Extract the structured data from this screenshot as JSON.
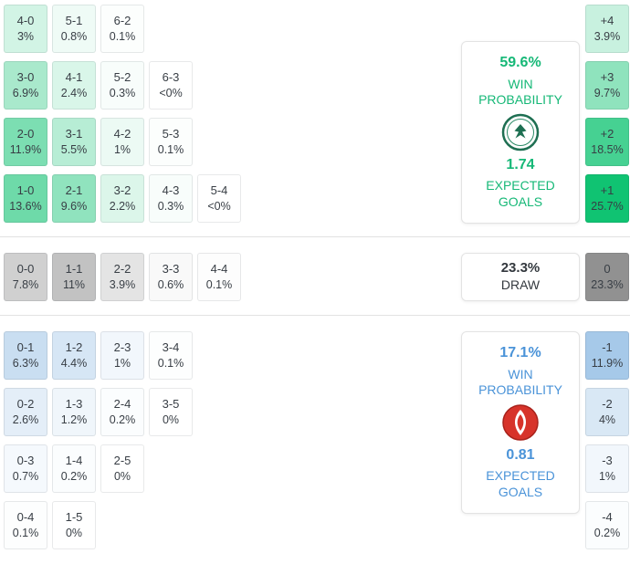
{
  "colors": {
    "home_accent": "#10c372",
    "draw_accent": "#919191",
    "away_accent": "#5c9cd6",
    "home_text": "#16b877",
    "away_text": "#4a93d8",
    "dark_text": "#33383e",
    "cell_text": "#383e45"
  },
  "summary_cards": {
    "home": {
      "win_probability": "59.6%",
      "win_probability_label": "WIN PROBABILITY",
      "expected_goals": "1.74",
      "expected_goals_label": "EXPECTED GOALS",
      "crest_icon": "konyaspor-crest-icon"
    },
    "draw": {
      "probability": "23.3%",
      "label": "DRAW"
    },
    "away": {
      "win_probability": "17.1%",
      "win_probability_label": "WIN PROBABILITY",
      "expected_goals": "0.81",
      "expected_goals_label": "EXPECTED GOALS",
      "crest_icon": "antalyaspor-crest-icon"
    }
  },
  "chart_data": {
    "type": "heatmap",
    "max_value_for_shading": 25.7,
    "draw_max_for_shading": 23.3,
    "sections": {
      "home_win": {
        "rows": [
          [
            {
              "score": "4-0",
              "probability": "3%",
              "value": 3.0
            },
            {
              "score": "5-1",
              "probability": "0.8%",
              "value": 0.8
            },
            {
              "score": "6-2",
              "probability": "0.1%",
              "value": 0.1
            }
          ],
          [
            {
              "score": "3-0",
              "probability": "6.9%",
              "value": 6.9
            },
            {
              "score": "4-1",
              "probability": "2.4%",
              "value": 2.4
            },
            {
              "score": "5-2",
              "probability": "0.3%",
              "value": 0.3
            },
            {
              "score": "6-3",
              "probability": "<0%",
              "value": 0
            }
          ],
          [
            {
              "score": "2-0",
              "probability": "11.9%",
              "value": 11.9
            },
            {
              "score": "3-1",
              "probability": "5.5%",
              "value": 5.5
            },
            {
              "score": "4-2",
              "probability": "1%",
              "value": 1.0
            },
            {
              "score": "5-3",
              "probability": "0.1%",
              "value": 0.1
            }
          ],
          [
            {
              "score": "1-0",
              "probability": "13.6%",
              "value": 13.6
            },
            {
              "score": "2-1",
              "probability": "9.6%",
              "value": 9.6
            },
            {
              "score": "3-2",
              "probability": "2.2%",
              "value": 2.2
            },
            {
              "score": "4-3",
              "probability": "0.3%",
              "value": 0.3
            },
            {
              "score": "5-4",
              "probability": "<0%",
              "value": 0
            }
          ]
        ]
      },
      "draw": {
        "rows": [
          [
            {
              "score": "0-0",
              "probability": "7.8%",
              "value": 7.8
            },
            {
              "score": "1-1",
              "probability": "11%",
              "value": 11.0
            },
            {
              "score": "2-2",
              "probability": "3.9%",
              "value": 3.9
            },
            {
              "score": "3-3",
              "probability": "0.6%",
              "value": 0.6
            },
            {
              "score": "4-4",
              "probability": "0.1%",
              "value": 0.1
            }
          ]
        ]
      },
      "away_win": {
        "rows": [
          [
            {
              "score": "0-1",
              "probability": "6.3%",
              "value": 6.3
            },
            {
              "score": "1-2",
              "probability": "4.4%",
              "value": 4.4
            },
            {
              "score": "2-3",
              "probability": "1%",
              "value": 1.0
            },
            {
              "score": "3-4",
              "probability": "0.1%",
              "value": 0.1
            }
          ],
          [
            {
              "score": "0-2",
              "probability": "2.6%",
              "value": 2.6
            },
            {
              "score": "1-3",
              "probability": "1.2%",
              "value": 1.2
            },
            {
              "score": "2-4",
              "probability": "0.2%",
              "value": 0.2
            },
            {
              "score": "3-5",
              "probability": "0%",
              "value": 0
            }
          ],
          [
            {
              "score": "0-3",
              "probability": "0.7%",
              "value": 0.7
            },
            {
              "score": "1-4",
              "probability": "0.2%",
              "value": 0.2
            },
            {
              "score": "2-5",
              "probability": "0%",
              "value": 0
            }
          ],
          [
            {
              "score": "0-4",
              "probability": "0.1%",
              "value": 0.1
            },
            {
              "score": "1-5",
              "probability": "0%",
              "value": 0
            }
          ]
        ]
      }
    },
    "goal_difference": [
      {
        "diff": "+4",
        "probability": "3.9%",
        "value": 3.9,
        "section": "home"
      },
      {
        "diff": "+3",
        "probability": "9.7%",
        "value": 9.7,
        "section": "home"
      },
      {
        "diff": "+2",
        "probability": "18.5%",
        "value": 18.5,
        "section": "home"
      },
      {
        "diff": "+1",
        "probability": "25.7%",
        "value": 25.7,
        "section": "home"
      },
      {
        "diff": "0",
        "probability": "23.3%",
        "value": 23.3,
        "section": "draw"
      },
      {
        "diff": "-1",
        "probability": "11.9%",
        "value": 11.9,
        "section": "away"
      },
      {
        "diff": "-2",
        "probability": "4%",
        "value": 4.0,
        "section": "away"
      },
      {
        "diff": "-3",
        "probability": "1%",
        "value": 1.0,
        "section": "away"
      },
      {
        "diff": "-4",
        "probability": "0.2%",
        "value": 0.2,
        "section": "away"
      }
    ]
  }
}
